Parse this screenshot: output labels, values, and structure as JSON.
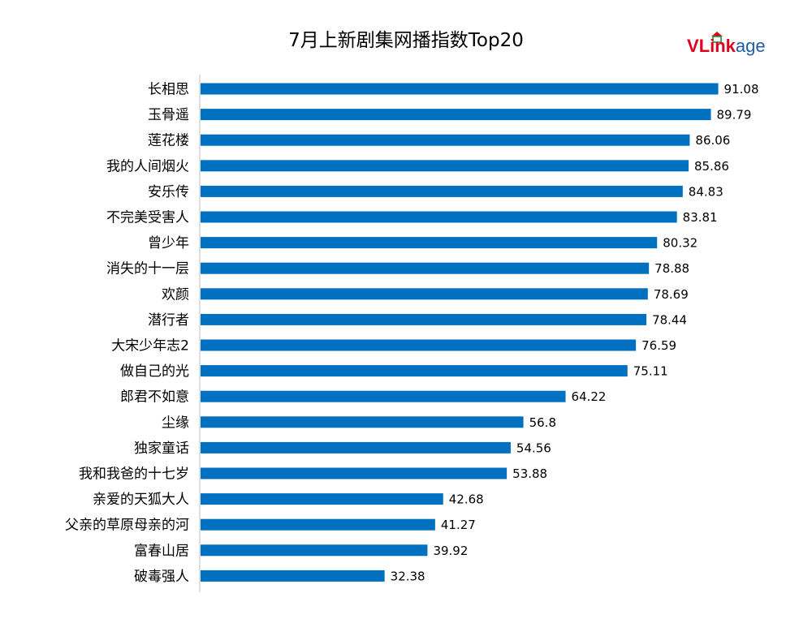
{
  "chart_data": {
    "type": "bar",
    "orientation": "horizontal",
    "title": "7月上新剧集网播指数Top20",
    "categories": [
      "长相思",
      "玉骨遥",
      "莲花楼",
      "我的人间烟火",
      "安乐传",
      "不完美受害人",
      "曾少年",
      "消失的十一层",
      "欢颜",
      "潜行者",
      "大宋少年志2",
      "做自己的光",
      "郎君不如意",
      "尘缘",
      "独家童话",
      "我和我爸的十七岁",
      "亲爱的天狐大人",
      "父亲的草原母亲的河",
      "富春山居",
      "破毒强人"
    ],
    "values": [
      91.08,
      89.79,
      86.06,
      85.86,
      84.83,
      83.81,
      80.32,
      78.88,
      78.69,
      78.44,
      76.59,
      75.11,
      64.22,
      56.8,
      54.56,
      53.88,
      42.68,
      41.27,
      39.92,
      32.38
    ],
    "value_labels": [
      "91.08",
      "89.79",
      "86.06",
      "85.86",
      "84.83",
      "83.81",
      "80.32",
      "78.88",
      "78.69",
      "78.44",
      "76.59",
      "75.11",
      "64.22",
      "56.8",
      "54.56",
      "53.88",
      "42.68",
      "41.27",
      "39.92",
      "32.38"
    ],
    "xlim": [
      0,
      100
    ],
    "bar_color": "#0070c0",
    "grid": false,
    "data_labels": true
  },
  "logo": {
    "text_v": "V",
    "text_link": "Link",
    "text_age": "age",
    "color_v": "#e0001b",
    "color_link": "#e0001b",
    "color_age": "#1f5fa8"
  }
}
